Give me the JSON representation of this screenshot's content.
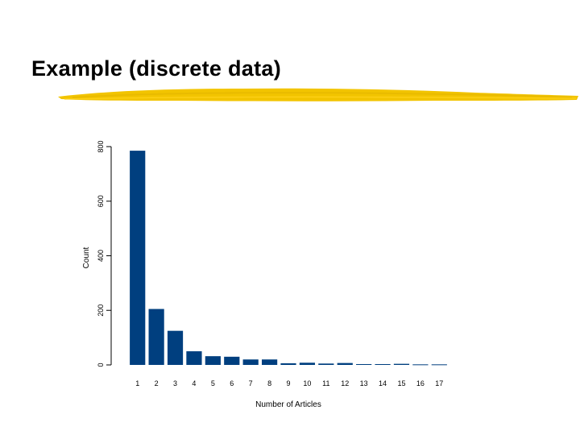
{
  "slide": {
    "title": "Example (discrete data)",
    "underline_color": "#f2c400"
  },
  "chart_data": {
    "type": "bar",
    "categories": [
      "1",
      "2",
      "3",
      "4",
      "5",
      "6",
      "7",
      "8",
      "9",
      "10",
      "11",
      "12",
      "13",
      "14",
      "15",
      "16",
      "17"
    ],
    "values": [
      785,
      205,
      125,
      50,
      32,
      30,
      20,
      20,
      6,
      8,
      5,
      7,
      3,
      3,
      4,
      2,
      2
    ],
    "title": "",
    "xlabel": "Number of Articles",
    "ylabel": "Count",
    "ylim": [
      0,
      800
    ],
    "yticks": [
      "0",
      "200",
      "400",
      "600",
      "800"
    ],
    "bar_color": "#003f7f",
    "grid": false,
    "legend": "none"
  }
}
